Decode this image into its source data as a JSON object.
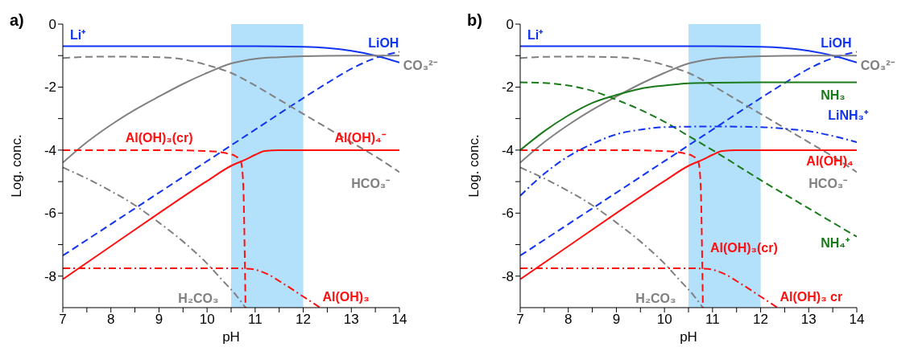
{
  "chart_data": [
    {
      "type": "line",
      "title": "a)",
      "xlabel": "pH",
      "ylabel": "Log. conc.",
      "xlim": [
        7,
        14
      ],
      "xticks": [
        7,
        {
          "value": 7.5,
          "label": null
        },
        8,
        {
          "value": 8.5,
          "label": null
        },
        9,
        {
          "value": 9.5,
          "label": null
        },
        10,
        {
          "value": 10.5,
          "label": null
        },
        11,
        {
          "value": 11.5,
          "label": null
        },
        12,
        {
          "value": 12.5,
          "label": null
        },
        13,
        {
          "value": 13.5,
          "label": null
        },
        14
      ],
      "ylim": [
        -9,
        0
      ],
      "yticks": [
        0,
        {
          "value": -1,
          "label": null
        },
        -2,
        {
          "value": -3,
          "label": null
        },
        -4,
        {
          "value": -5,
          "label": null
        },
        -6,
        {
          "value": -7,
          "label": null
        },
        -8
      ],
      "bands": [
        {
          "axis": "x",
          "from": 10.5,
          "to": 12,
          "color": "#b3e0fb"
        }
      ],
      "series": [
        {
          "name": "Li⁺",
          "color": "#1034f0",
          "line_style": "solid",
          "x": [
            7,
            10,
            11,
            12,
            12.5,
            13,
            13.5,
            14
          ],
          "values": [
            -0.7,
            -0.7,
            -0.7,
            -0.72,
            -0.76,
            -0.85,
            -1.0,
            -1.22
          ]
        },
        {
          "name": "LiOH",
          "color": "#1034f0",
          "line_style": "dashed",
          "x": [
            7,
            8,
            9,
            10,
            11,
            12,
            12.5,
            13,
            13.5,
            14
          ],
          "values": [
            -7.35,
            -6.35,
            -5.35,
            -4.35,
            -3.35,
            -2.35,
            -1.87,
            -1.42,
            -1.08,
            -0.88
          ]
        },
        {
          "name": "CO₃²⁻",
          "color": "#808080",
          "line_style": "solid",
          "x": [
            7,
            7.5,
            8,
            8.5,
            9,
            9.5,
            10,
            10.5,
            11,
            11.5,
            12,
            13,
            14
          ],
          "values": [
            -4.4,
            -3.75,
            -3.2,
            -2.72,
            -2.3,
            -1.9,
            -1.55,
            -1.25,
            -1.1,
            -1.05,
            -1.02,
            -1.0,
            -1.0
          ]
        },
        {
          "name": "HCO₃⁻",
          "color": "#808080",
          "line_style": "dashed",
          "x": [
            7,
            7.5,
            8,
            9,
            9.5,
            10,
            10.5,
            11,
            11.5,
            12,
            12.5,
            13,
            13.5,
            14
          ],
          "values": [
            -1.08,
            -1.04,
            -1.03,
            -1.05,
            -1.12,
            -1.3,
            -1.55,
            -1.95,
            -2.4,
            -2.85,
            -3.3,
            -3.75,
            -4.2,
            -4.7
          ]
        },
        {
          "name": "H₂CO₃",
          "color": "#808080",
          "line_style": "dashdot",
          "x": [
            7,
            7.5,
            8,
            8.5,
            9,
            9.5,
            10,
            10.3,
            10.6,
            10.8
          ],
          "values": [
            -4.55,
            -4.9,
            -5.3,
            -5.75,
            -6.3,
            -6.9,
            -7.6,
            -8.1,
            -8.6,
            -9
          ]
        },
        {
          "name": "Al(OH)₄⁻",
          "color": "#ff1010",
          "line_style": "solid",
          "x": [
            7,
            8,
            9,
            10,
            10.5,
            10.8,
            11,
            11.2,
            11.5,
            12,
            14
          ],
          "values": [
            -8.1,
            -7.05,
            -6.0,
            -4.98,
            -4.5,
            -4.3,
            -4.15,
            -4.03,
            -4,
            -4,
            -4
          ]
        },
        {
          "name": "Al(OH)₃(cr)",
          "color": "#ff1010",
          "line_style": "dashed",
          "x": [
            7,
            9,
            10,
            10.4,
            10.6,
            10.7,
            10.75,
            10.78,
            10.8
          ],
          "values": [
            -4,
            -4,
            -4.03,
            -4.1,
            -4.2,
            -4.35,
            -5,
            -7,
            -9
          ]
        },
        {
          "name": "Al(OH)₃",
          "color": "#ff1010",
          "line_style": "dashdot",
          "x": [
            7,
            10.5,
            10.9,
            11.2,
            11.6,
            12,
            12.35
          ],
          "values": [
            -7.75,
            -7.75,
            -7.77,
            -7.9,
            -8.25,
            -8.65,
            -9
          ]
        }
      ]
    },
    {
      "type": "line",
      "title": "b)",
      "xlabel": "pH",
      "ylabel": "Log. conc.",
      "xlim": [
        7,
        14
      ],
      "xticks": [
        7,
        {
          "value": 7.5,
          "label": null
        },
        8,
        {
          "value": 8.5,
          "label": null
        },
        9,
        {
          "value": 9.5,
          "label": null
        },
        10,
        {
          "value": 10.5,
          "label": null
        },
        11,
        {
          "value": 11.5,
          "label": null
        },
        12,
        {
          "value": 12.5,
          "label": null
        },
        13,
        {
          "value": 13.5,
          "label": null
        },
        14
      ],
      "ylim": [
        -9,
        0
      ],
      "yticks": [
        0,
        {
          "value": -1,
          "label": null
        },
        -2,
        {
          "value": -3,
          "label": null
        },
        -4,
        {
          "value": -5,
          "label": null
        },
        -6,
        {
          "value": -7,
          "label": null
        },
        -8
      ],
      "bands": [
        {
          "axis": "x",
          "from": 10.5,
          "to": 12,
          "color": "#b3e0fb"
        }
      ],
      "series": [
        {
          "name": "Li⁺",
          "color": "#1034f0",
          "line_style": "solid",
          "x": [
            7,
            10,
            11,
            12,
            12.5,
            13,
            13.5,
            14
          ],
          "values": [
            -0.7,
            -0.7,
            -0.7,
            -0.72,
            -0.76,
            -0.85,
            -1.0,
            -1.22
          ]
        },
        {
          "name": "LiOH",
          "color": "#1034f0",
          "line_style": "dashed",
          "x": [
            7,
            8,
            9,
            10,
            11,
            12,
            12.5,
            13,
            13.5,
            14
          ],
          "values": [
            -7.35,
            -6.35,
            -5.35,
            -4.35,
            -3.35,
            -2.35,
            -1.87,
            -1.42,
            -1.08,
            -0.88
          ]
        },
        {
          "name": "CO₃²⁻",
          "color": "#808080",
          "line_style": "solid",
          "x": [
            7,
            7.5,
            8,
            8.5,
            9,
            9.5,
            10,
            10.5,
            11,
            11.5,
            12,
            13,
            14
          ],
          "values": [
            -4.4,
            -3.75,
            -3.2,
            -2.72,
            -2.3,
            -1.9,
            -1.55,
            -1.25,
            -1.1,
            -1.05,
            -1.02,
            -1.0,
            -1.0
          ]
        },
        {
          "name": "HCO₃⁻",
          "color": "#808080",
          "line_style": "dashed",
          "x": [
            7,
            7.5,
            8,
            9,
            9.5,
            10,
            10.5,
            11,
            11.5,
            12,
            12.5,
            13,
            13.5,
            14
          ],
          "values": [
            -1.08,
            -1.04,
            -1.03,
            -1.05,
            -1.12,
            -1.3,
            -1.55,
            -1.95,
            -2.4,
            -2.85,
            -3.3,
            -3.75,
            -4.2,
            -4.7
          ]
        },
        {
          "name": "H₂CO₃",
          "color": "#808080",
          "line_style": "dashdot",
          "x": [
            7,
            7.5,
            8,
            8.5,
            9,
            9.5,
            10,
            10.3,
            10.6,
            10.8
          ],
          "values": [
            -4.55,
            -4.9,
            -5.3,
            -5.75,
            -6.3,
            -6.9,
            -7.6,
            -8.1,
            -8.6,
            -9
          ]
        },
        {
          "name": "Al(OH)₄",
          "color": "#ff1010",
          "line_style": "solid",
          "x": [
            7,
            8,
            9,
            10,
            10.5,
            10.8,
            11,
            11.2,
            11.5,
            12,
            14
          ],
          "values": [
            -8.1,
            -7.05,
            -6.0,
            -4.98,
            -4.5,
            -4.3,
            -4.15,
            -4.03,
            -4,
            -4,
            -4
          ]
        },
        {
          "name": "Al(OH)₃(cr)",
          "color": "#ff1010",
          "line_style": "dashed",
          "x": [
            7,
            9,
            10,
            10.4,
            10.6,
            10.7,
            10.75,
            10.78,
            10.8
          ],
          "values": [
            -4,
            -4,
            -4.03,
            -4.1,
            -4.2,
            -4.35,
            -5,
            -7,
            -9
          ]
        },
        {
          "name": "Al(OH)₃ cr",
          "color": "#ff1010",
          "line_style": "dashdot",
          "x": [
            7,
            10.5,
            10.9,
            11.2,
            11.6,
            12,
            12.35
          ],
          "values": [
            -7.75,
            -7.75,
            -7.77,
            -7.9,
            -8.25,
            -8.65,
            -9
          ]
        },
        {
          "name": "NH₃",
          "color": "#1a7a1a",
          "line_style": "solid",
          "x": [
            7,
            7.5,
            8,
            8.5,
            9,
            9.5,
            10,
            10.5,
            11,
            12,
            14
          ],
          "values": [
            -4.0,
            -3.4,
            -2.9,
            -2.5,
            -2.25,
            -2.05,
            -1.95,
            -1.88,
            -1.86,
            -1.85,
            -1.85
          ]
        },
        {
          "name": "NH₄⁺",
          "color": "#1a7a1a",
          "line_style": "dashed",
          "x": [
            7,
            7.5,
            8,
            8.5,
            9,
            9.5,
            10,
            10.5,
            11,
            12,
            13,
            14
          ],
          "values": [
            -1.85,
            -1.87,
            -1.95,
            -2.12,
            -2.4,
            -2.72,
            -3.1,
            -3.55,
            -4.0,
            -4.95,
            -5.85,
            -6.75
          ]
        },
        {
          "name": "LiNH₃⁺",
          "color": "#1034f0",
          "line_style": "dashdot",
          "x": [
            7,
            7.5,
            8,
            8.5,
            9,
            9.5,
            10,
            11,
            12,
            12.5,
            13,
            13.5,
            14
          ],
          "values": [
            -5.45,
            -4.75,
            -4.2,
            -3.8,
            -3.5,
            -3.35,
            -3.27,
            -3.25,
            -3.27,
            -3.32,
            -3.4,
            -3.55,
            -3.75
          ]
        }
      ]
    }
  ]
}
